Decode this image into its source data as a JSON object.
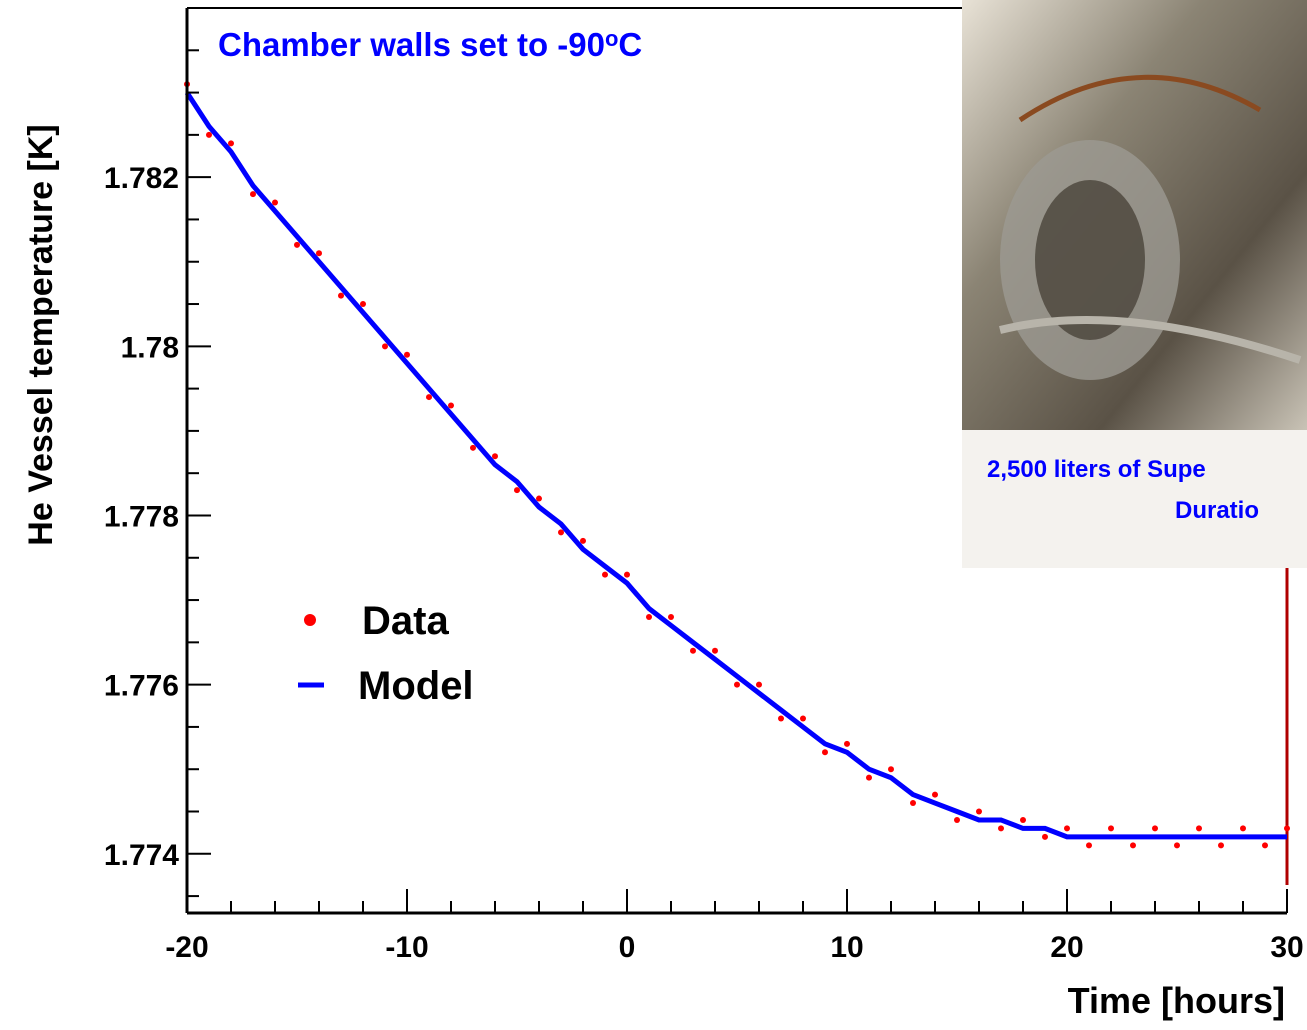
{
  "chart_data": {
    "type": "scatter",
    "annotation": {
      "text": "Chamber walls set to -90",
      "sup": "o",
      "tail": "C"
    },
    "xlabel": "Time [hours]",
    "ylabel": "He Vessel temperature [K]",
    "x": [
      -20,
      -19,
      -18,
      -17,
      -16,
      -15,
      -14,
      -13,
      -12,
      -11,
      -10,
      -9,
      -8,
      -7,
      -6,
      -5,
      -4,
      -3,
      -2,
      -1,
      0,
      1,
      2,
      3,
      4,
      5,
      6,
      7,
      8,
      9,
      10,
      11,
      12,
      13,
      14,
      15,
      16,
      17,
      18,
      19,
      20,
      21,
      22,
      23,
      24,
      25,
      26,
      27,
      28,
      29,
      30
    ],
    "series": [
      {
        "name": "Data",
        "color": "#ff0000",
        "marker": "dot",
        "values": [
          1.7831,
          1.7825,
          1.7824,
          1.7818,
          1.7817,
          1.7812,
          1.7811,
          1.7806,
          1.7805,
          1.78,
          1.7799,
          1.7794,
          1.7793,
          1.7788,
          1.7787,
          1.7783,
          1.7782,
          1.7778,
          1.7777,
          1.7773,
          1.7773,
          1.7768,
          1.7768,
          1.7764,
          1.7764,
          1.776,
          1.776,
          1.7756,
          1.7756,
          1.7752,
          1.7753,
          1.7749,
          1.775,
          1.7746,
          1.7747,
          1.7744,
          1.7745,
          1.7743,
          1.7744,
          1.7742,
          1.7743,
          1.7741,
          1.7743,
          1.7741,
          1.7743,
          1.7741,
          1.7743,
          1.7741,
          1.7743,
          1.7741,
          1.7743
        ]
      },
      {
        "name": "Model",
        "color": "#0000ff",
        "marker": "line",
        "values": [
          1.783,
          1.7826,
          1.7823,
          1.7819,
          1.7816,
          1.7813,
          1.781,
          1.7807,
          1.7804,
          1.7801,
          1.7798,
          1.7795,
          1.7792,
          1.7789,
          1.7786,
          1.7784,
          1.7781,
          1.7779,
          1.7776,
          1.7774,
          1.7772,
          1.7769,
          1.7767,
          1.7765,
          1.7763,
          1.7761,
          1.7759,
          1.7757,
          1.7755,
          1.7753,
          1.7752,
          1.775,
          1.7749,
          1.7747,
          1.7746,
          1.7745,
          1.7744,
          1.7744,
          1.7743,
          1.7743,
          1.7742,
          1.7742,
          1.7742,
          1.7742,
          1.7742,
          1.7742,
          1.7742,
          1.7742,
          1.7742,
          1.7742,
          1.7742
        ]
      }
    ],
    "xlim": [
      -20,
      30
    ],
    "ylim": [
      1.7733,
      1.784
    ],
    "xticks": [
      -20,
      -10,
      0,
      10,
      20,
      30
    ],
    "yticks": [
      1.774,
      1.776,
      1.778,
      1.78,
      1.782
    ],
    "xminorticks": [
      -18,
      -16,
      -14,
      -12,
      -8,
      -6,
      -4,
      -2,
      2,
      4,
      6,
      8,
      12,
      14,
      16,
      18,
      22,
      24,
      26,
      28
    ],
    "yminorticks": [
      1.7735,
      1.7745,
      1.775,
      1.7755,
      1.7765,
      1.777,
      1.7775,
      1.7785,
      1.779,
      1.7795,
      1.7805,
      1.781,
      1.7815,
      1.7825,
      1.783,
      1.7835
    ],
    "inset": {
      "caption": [
        "2,500 liters of Supe",
        "Duratio"
      ]
    }
  }
}
